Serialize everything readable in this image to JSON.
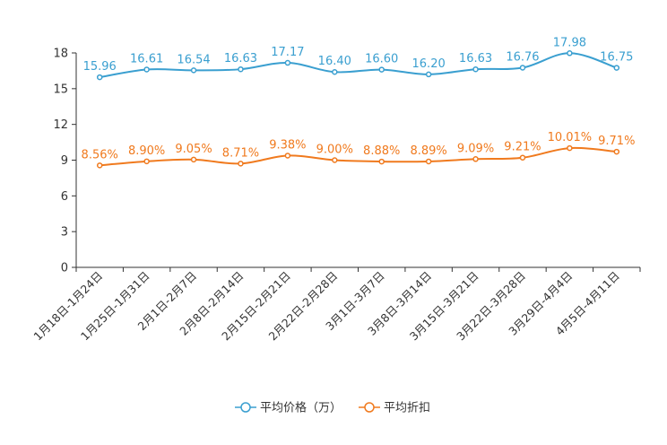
{
  "chart_data": {
    "type": "line",
    "title": "",
    "xlabel": "",
    "ylabel": "",
    "ylim": [
      0,
      18
    ],
    "yticks": [
      0,
      3,
      6,
      9,
      12,
      15,
      18
    ],
    "ytick_labels": [
      "0",
      "3",
      "6",
      "9",
      "12",
      "15",
      "18"
    ],
    "categories": [
      "1月18日-1月24日",
      "1月25日-1月31日",
      "2月1日-2月7日",
      "2月8日-2月14日",
      "2月15日-2月21日",
      "2月22日-2月28日",
      "3月1日-3月7日",
      "3月8日-3月14日",
      "3月15日-3月21日",
      "3月22日-3月28日",
      "3月29日-4月4日",
      "4月5日-4月11日"
    ],
    "series": [
      {
        "name": "平均价格（万）",
        "color": "#3a9fd0",
        "values": [
          15.96,
          16.61,
          16.54,
          16.63,
          17.17,
          16.4,
          16.6,
          16.2,
          16.63,
          16.76,
          17.98,
          16.75
        ],
        "labels": [
          "15.96",
          "16.61",
          "16.54",
          "16.63",
          "17.17",
          "16.40",
          "16.60",
          "16.20",
          "16.63",
          "16.76",
          "17.98",
          "16.75"
        ]
      },
      {
        "name": "平均折扣",
        "color": "#f07a1e",
        "values": [
          8.56,
          8.9,
          9.05,
          8.71,
          9.38,
          9.0,
          8.88,
          8.89,
          9.09,
          9.21,
          10.01,
          9.71
        ],
        "labels": [
          "8.56%",
          "8.90%",
          "9.05%",
          "8.71%",
          "9.38%",
          "9.00%",
          "8.88%",
          "8.89%",
          "9.09%",
          "9.21%",
          "10.01%",
          "9.71%"
        ]
      }
    ],
    "legend_position": "bottom-center",
    "grid": false
  }
}
